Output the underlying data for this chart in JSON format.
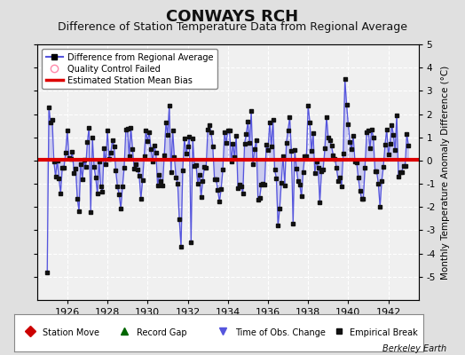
{
  "title": "CONWAYS RCH",
  "subtitle": "Difference of Station Temperature Data from Regional Average",
  "ylabel": "Monthly Temperature Anomaly Difference (°C)",
  "bias_value": 0.05,
  "ylim": [
    -6,
    5
  ],
  "yticks": [
    -5,
    -4,
    -3,
    -2,
    -1,
    0,
    1,
    2,
    3,
    4,
    5
  ],
  "xlim": [
    1924.5,
    1943.5
  ],
  "xticks": [
    1926,
    1928,
    1930,
    1932,
    1934,
    1936,
    1938,
    1940,
    1942
  ],
  "background_color": "#e0e0e0",
  "plot_bg_color": "#f0f0f0",
  "grid_color": "#ffffff",
  "line_color": "#5555dd",
  "line_fill_color": "#aaaaee",
  "bias_color": "#dd0000",
  "marker_color": "#111111",
  "title_fontsize": 13,
  "subtitle_fontsize": 9,
  "berkeley_earth_text": "Berkeley Earth",
  "seed": 42
}
